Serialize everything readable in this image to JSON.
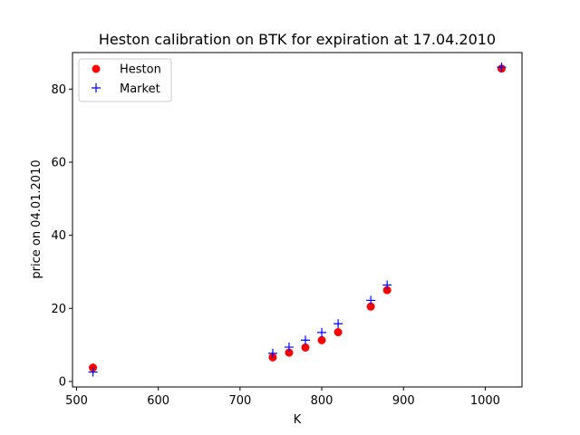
{
  "chart_data": {
    "type": "scatter",
    "title": "Heston calibration on BTK for expiration at 17.04.2010",
    "xlabel": "K",
    "ylabel": "price on 04.01.2010",
    "xlim": [
      495,
      1045
    ],
    "ylim": [
      -1.5,
      90
    ],
    "xticks": [
      500,
      600,
      700,
      800,
      900,
      1000
    ],
    "yticks": [
      0,
      20,
      40,
      60,
      80
    ],
    "grid": false,
    "legend": "top-left",
    "series": [
      {
        "name": "Heston",
        "marker": "circle",
        "color": "#ff0000",
        "x": [
          520,
          740,
          760,
          780,
          800,
          820,
          860,
          880,
          1020
        ],
        "y": [
          3.8,
          6.6,
          7.9,
          9.3,
          11.3,
          13.5,
          20.5,
          25.0,
          85.6
        ]
      },
      {
        "name": "Market",
        "marker": "plus",
        "color": "#0000ff",
        "x": [
          520,
          740,
          760,
          780,
          800,
          820,
          860,
          880,
          1020
        ],
        "y": [
          2.6,
          7.7,
          9.4,
          11.3,
          13.4,
          15.8,
          22.2,
          26.4,
          86.0
        ]
      }
    ]
  }
}
